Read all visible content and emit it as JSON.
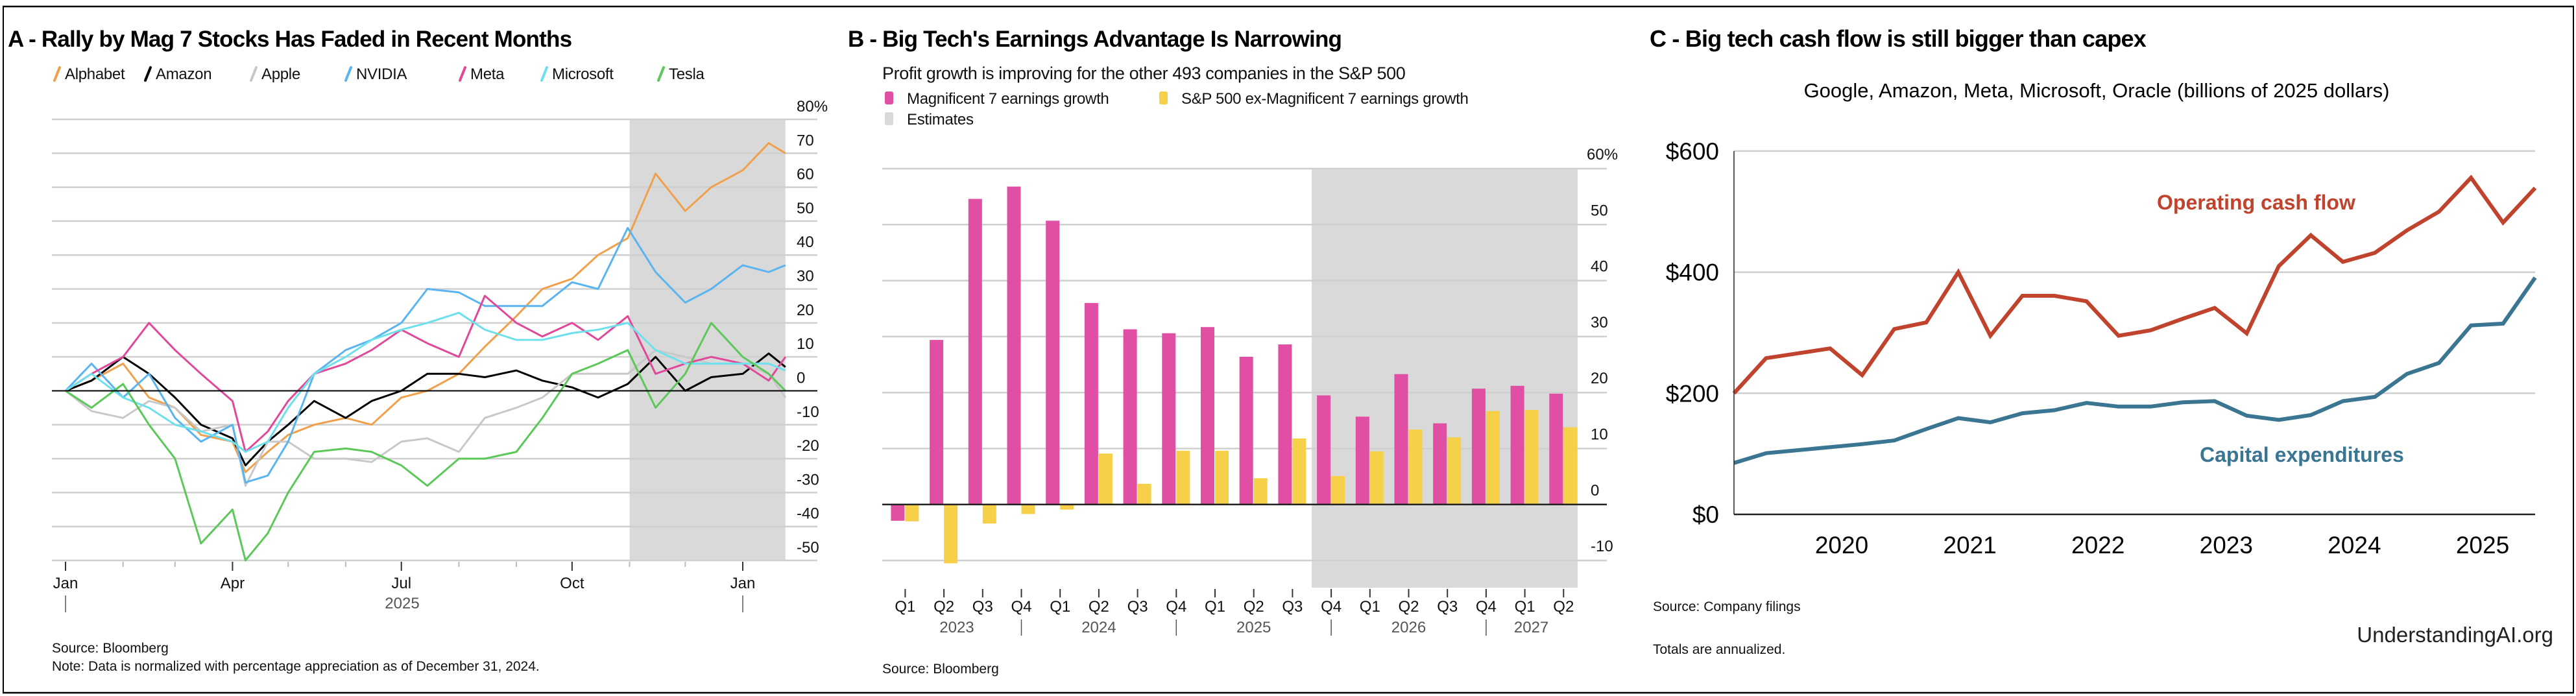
{
  "panel_a": {
    "title": "A - Rally by Mag 7 Stocks Has Faded in Recent Months",
    "source": "Source: Bloomberg",
    "note": "Note: Data is normalized with percentage appreciation as of December 31, 2024."
  },
  "panel_b": {
    "title": "B - Big Tech's Earnings Advantage Is Narrowing",
    "subtitle": "Profit growth is improving for the other 493 companies in the S&P 500",
    "source": "Source: Bloomberg"
  },
  "panel_c": {
    "title": "C -  Big tech cash flow is still bigger than capex",
    "subtitle": "Google, Amazon, Meta, Microsoft, Oracle (billions of 2025 dollars)",
    "source": "Source: Company filings",
    "note": "Totals are annualized.",
    "credit": "UnderstandingAI.org"
  },
  "chart_data": [
    {
      "type": "line",
      "title": "A - Rally by Mag 7 Stocks Has Faded in Recent Months",
      "ylim": [
        -50,
        80
      ],
      "yticks": [
        "80%",
        "70",
        "60",
        "50",
        "40",
        "30",
        "20",
        "10",
        "0",
        "-10",
        "-20",
        "-30",
        "-40",
        "-50"
      ],
      "ytick_values": [
        80,
        70,
        60,
        50,
        40,
        30,
        20,
        10,
        0,
        -10,
        -20,
        -30,
        -40,
        -50
      ],
      "xticks": [
        "Jan",
        "Apr",
        "Jul",
        "Oct",
        "Jan"
      ],
      "xtick_dates": [
        "2025-01-01",
        "2025-04-01",
        "2025-07-01",
        "2025-10-01",
        "2026-01-01"
      ],
      "year_label": "2025",
      "grid": true,
      "legend": "top-left",
      "shaded_range": [
        "2025-11-01",
        "2026-01-24"
      ],
      "x": [
        "2025-01-01",
        "2025-01-15",
        "2025-02-01",
        "2025-02-15",
        "2025-03-01",
        "2025-03-15",
        "2025-04-01",
        "2025-04-08",
        "2025-04-20",
        "2025-05-01",
        "2025-05-15",
        "2025-06-01",
        "2025-06-15",
        "2025-07-01",
        "2025-07-15",
        "2025-08-01",
        "2025-08-15",
        "2025-09-01",
        "2025-09-15",
        "2025-10-01",
        "2025-10-15",
        "2025-10-31",
        "2025-11-15",
        "2025-12-01",
        "2025-12-15",
        "2026-01-01",
        "2026-01-15",
        "2026-01-24"
      ],
      "series": [
        {
          "name": "Alphabet",
          "color": "#f0a04b",
          "values": [
            0,
            3,
            8,
            -2,
            -5,
            -13,
            -15,
            -24,
            -18,
            -13,
            -10,
            -8,
            -10,
            -2,
            0,
            5,
            13,
            22,
            30,
            33,
            40,
            45,
            64,
            53,
            60,
            65,
            73,
            70
          ]
        },
        {
          "name": "Amazon",
          "color": "#000000",
          "values": [
            0,
            3,
            10,
            5,
            -2,
            -10,
            -14,
            -22,
            -15,
            -10,
            -3,
            -8,
            -3,
            0,
            5,
            5,
            4,
            6,
            3,
            1,
            -2,
            2,
            10,
            0,
            4,
            5,
            11,
            7
          ]
        },
        {
          "name": "Apple",
          "color": "#c8c8c8",
          "values": [
            0,
            -6,
            -8,
            -3,
            -5,
            -12,
            -10,
            -28,
            -15,
            -15,
            -20,
            -20,
            -21,
            -15,
            -14,
            -18,
            -8,
            -5,
            -2,
            5,
            5,
            5,
            12,
            10,
            8,
            8,
            5,
            -2
          ]
        },
        {
          "name": "NVIDIA",
          "color": "#5ab4f0",
          "values": [
            0,
            8,
            -2,
            5,
            -8,
            -15,
            -10,
            -27,
            -25,
            -15,
            5,
            12,
            15,
            20,
            30,
            29,
            25,
            25,
            25,
            32,
            30,
            48,
            35,
            26,
            30,
            37,
            35,
            37
          ]
        },
        {
          "name": "Meta",
          "color": "#e0489a",
          "values": [
            0,
            5,
            10,
            20,
            12,
            5,
            -3,
            -18,
            -12,
            -3,
            5,
            8,
            12,
            18,
            14,
            10,
            28,
            20,
            16,
            20,
            15,
            22,
            5,
            8,
            10,
            8,
            3,
            10
          ]
        },
        {
          "name": "Microsoft",
          "color": "#6ee0ec",
          "values": [
            0,
            5,
            -2,
            -5,
            -10,
            -12,
            -15,
            -18,
            -15,
            -5,
            5,
            10,
            15,
            18,
            20,
            23,
            18,
            15,
            15,
            17,
            18,
            20,
            12,
            8,
            8,
            8,
            8,
            6
          ]
        },
        {
          "name": "Tesla",
          "color": "#5cc85a",
          "values": [
            0,
            -5,
            2,
            -10,
            -20,
            -45,
            -35,
            -50,
            -42,
            -30,
            -18,
            -17,
            -18,
            -22,
            -28,
            -20,
            -20,
            -18,
            -8,
            5,
            8,
            12,
            -5,
            5,
            20,
            10,
            5,
            0
          ]
        }
      ]
    },
    {
      "type": "bar",
      "title": "B - Big Tech's Earnings Advantage Is Narrowing",
      "subtitle": "Profit growth is improving for the other 493 companies in the S&P 500",
      "ylim": [
        -15,
        60
      ],
      "yticks": [
        "60%",
        "50",
        "40",
        "30",
        "20",
        "10",
        "0",
        "-10"
      ],
      "ytick_values": [
        60,
        50,
        40,
        30,
        20,
        10,
        0,
        -10
      ],
      "categories": [
        "Q1",
        "Q2",
        "Q3",
        "Q4",
        "Q1",
        "Q2",
        "Q3",
        "Q4",
        "Q1",
        "Q2",
        "Q3",
        "Q4",
        "Q1",
        "Q2",
        "Q3",
        "Q4",
        "Q1",
        "Q2"
      ],
      "years": [
        "2023",
        "2024",
        "2025",
        "2026",
        "2027"
      ],
      "grid": true,
      "legend": "top-left",
      "estimates_label": "Estimates",
      "estimates_start_index": 11,
      "series": [
        {
          "name": "Magnificent 7 earnings growth",
          "color": "#e04fa3",
          "values": [
            -2.9,
            29.4,
            54.6,
            56.8,
            50.7,
            36.0,
            31.3,
            30.6,
            31.7,
            26.4,
            28.6,
            19.5,
            15.7,
            23.3,
            14.5,
            20.7,
            21.2,
            19.8
          ]
        },
        {
          "name": "S&P 500 ex-Magnificent 7 earnings growth",
          "color": "#f7d04a",
          "values": [
            -3.0,
            -10.5,
            -3.4,
            -1.7,
            -0.9,
            9.1,
            3.7,
            9.6,
            9.6,
            4.7,
            11.8,
            5.1,
            9.5,
            13.4,
            12.0,
            16.7,
            16.9,
            13.8
          ]
        }
      ]
    },
    {
      "type": "line",
      "title": "C -  Big tech cash flow is still bigger than capex",
      "subtitle": "Google, Amazon, Meta, Microsoft, Oracle (billions of 2025 dollars)",
      "ylim": [
        0,
        600
      ],
      "yticks": [
        "$600",
        "$400",
        "$200",
        "$0"
      ],
      "ytick_values": [
        600,
        400,
        200,
        0
      ],
      "xticks": [
        "2020",
        "2021",
        "2022",
        "2023",
        "2024",
        "2025"
      ],
      "grid": true,
      "x": [
        "2019 Q1",
        "2019 Q2",
        "2019 Q3",
        "2019 Q4",
        "2020 Q1",
        "2020 Q2",
        "2020 Q3",
        "2020 Q4",
        "2021 Q1",
        "2021 Q2",
        "2021 Q3",
        "2021 Q4",
        "2022 Q1",
        "2022 Q2",
        "2022 Q3",
        "2022 Q4",
        "2023 Q1",
        "2023 Q2",
        "2023 Q3",
        "2023 Q4",
        "2024 Q1",
        "2024 Q2",
        "2024 Q3",
        "2024 Q4",
        "2025 Q1",
        "2025 Q2"
      ],
      "series": [
        {
          "name": "Operating cash flow",
          "color": "#c0432e",
          "values": [
            200,
            258,
            266,
            274,
            230,
            306,
            317,
            400,
            295,
            361,
            361,
            352,
            295,
            304,
            323,
            341,
            299,
            410,
            461,
            417,
            432,
            469,
            500,
            556,
            482,
            539
          ]
        },
        {
          "name": "Capital expenditures",
          "color": "#3a7592",
          "values": [
            85,
            101,
            106,
            111,
            116,
            122,
            141,
            159,
            152,
            167,
            172,
            184,
            178,
            178,
            185,
            187,
            163,
            156,
            164,
            187,
            194,
            232,
            250,
            312,
            315,
            391
          ]
        }
      ]
    }
  ]
}
